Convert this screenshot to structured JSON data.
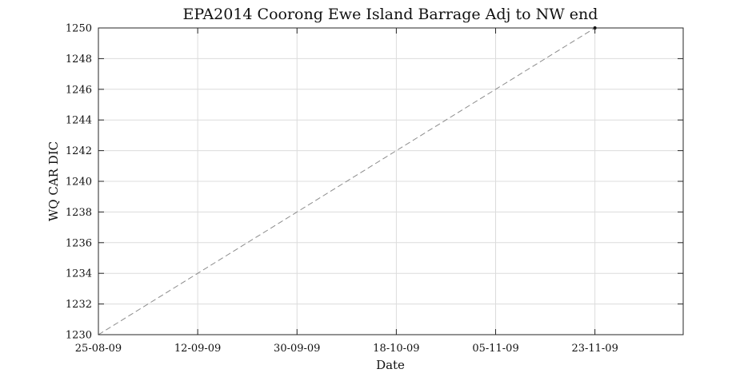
{
  "chart_data": {
    "type": "line",
    "title": "EPA2014 Coorong Ewe Island Barrage Adj to NW end",
    "xlabel": "Date",
    "ylabel": "WQ CAR DIC",
    "x_ticks": [
      "25-08-09",
      "12-09-09",
      "30-09-09",
      "18-10-09",
      "05-11-09",
      "23-11-09"
    ],
    "y_ticks": [
      "1230",
      "1232",
      "1234",
      "1236",
      "1238",
      "1240",
      "1242",
      "1244",
      "1246",
      "1248",
      "1250"
    ],
    "xlim": [
      "2009-08-25",
      "2009-12-09"
    ],
    "ylim": [
      1230,
      1250
    ],
    "grid": true,
    "series": [
      {
        "style": "dashed",
        "color": "#8c8c8c",
        "points": [
          {
            "x": "2009-08-25",
            "y": 1230
          },
          {
            "x": "2009-11-23",
            "y": 1250
          }
        ]
      }
    ],
    "markers": [
      {
        "x": "2009-11-23",
        "y": 1250,
        "color": "#000000"
      }
    ]
  }
}
